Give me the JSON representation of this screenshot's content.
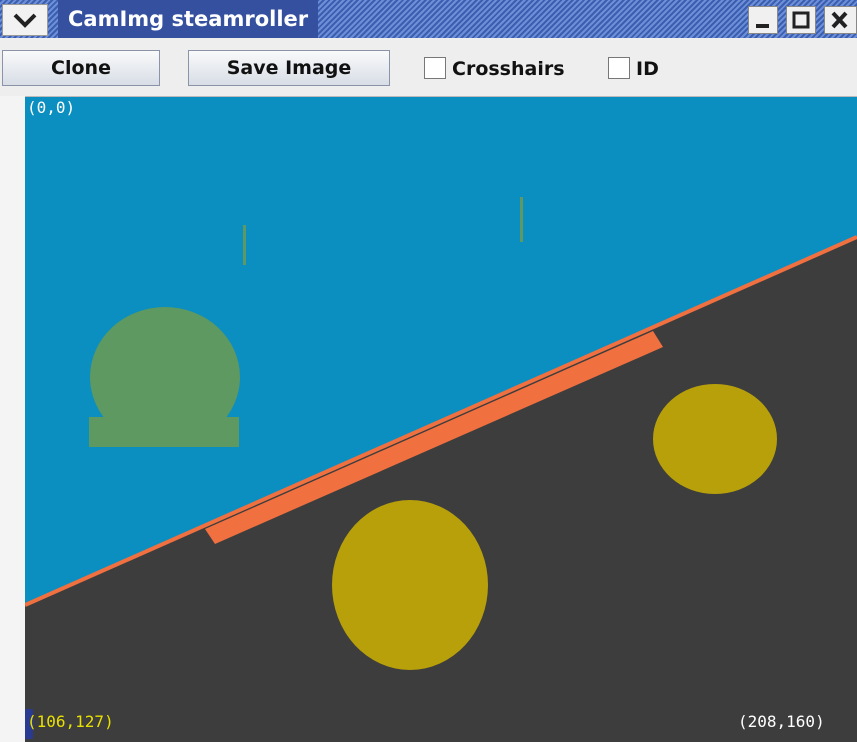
{
  "window": {
    "title": "CamImg steamroller"
  },
  "toolbar": {
    "buttons": [
      "Clone",
      "Save Image"
    ],
    "checkboxes": [
      "Crosshairs",
      "ID"
    ]
  },
  "image": {
    "top_left_label": "(0,0)",
    "cursor_label": "(106,127)",
    "size_label": "(208,160)"
  }
}
